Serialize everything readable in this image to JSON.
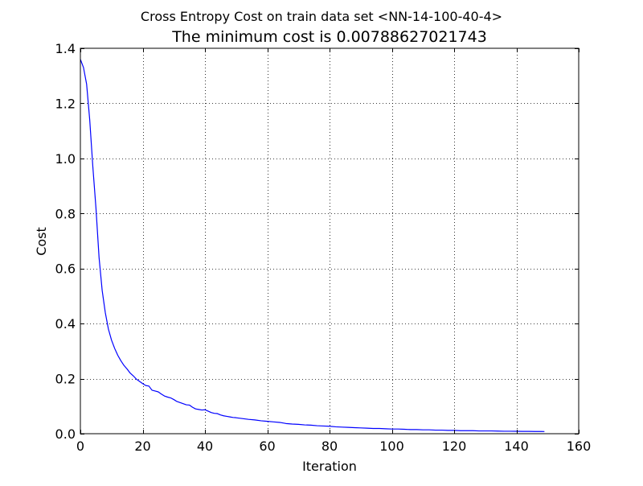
{
  "chart_data": {
    "type": "line",
    "suptitle": "Cross Entropy Cost on train data set <NN-14-100-40-4>",
    "title": "The minimum cost is 0.00788627021743",
    "xlabel": "Iteration",
    "ylabel": "Cost",
    "xlim": [
      0,
      160
    ],
    "ylim": [
      0,
      1.4
    ],
    "xticks": [
      0,
      20,
      40,
      60,
      80,
      100,
      120,
      140,
      160
    ],
    "yticks": [
      0.0,
      0.2,
      0.4,
      0.6,
      0.8,
      1.0,
      1.2,
      1.4
    ],
    "xtick_labels": [
      "0",
      "20",
      "40",
      "60",
      "80",
      "100",
      "120",
      "140",
      "160"
    ],
    "ytick_labels": [
      "0.0",
      "0.2",
      "0.4",
      "0.6",
      "0.8",
      "1.0",
      "1.2",
      "1.4"
    ],
    "grid": true,
    "series": [
      {
        "name": "cost",
        "color": "#0000ff",
        "x": [
          0,
          1,
          2,
          3,
          4,
          5,
          6,
          7,
          8,
          9,
          10,
          11,
          12,
          13,
          14,
          15,
          16,
          17,
          18,
          19,
          20,
          21,
          22,
          23,
          24,
          25,
          26,
          27,
          28,
          29,
          30,
          31,
          32,
          33,
          34,
          35,
          36,
          37,
          38,
          39,
          40,
          41,
          42,
          43,
          44,
          45,
          46,
          47,
          48,
          49,
          50,
          52,
          54,
          56,
          58,
          60,
          62,
          64,
          66,
          68,
          70,
          72,
          74,
          76,
          78,
          80,
          82,
          84,
          86,
          88,
          90,
          92,
          94,
          96,
          98,
          100,
          102,
          104,
          106,
          108,
          110,
          112,
          114,
          116,
          118,
          120,
          122,
          124,
          126,
          128,
          130,
          132,
          134,
          136,
          138,
          140,
          142,
          144,
          146,
          148,
          149
        ],
        "y": [
          1.36,
          1.33,
          1.27,
          1.14,
          0.97,
          0.82,
          0.64,
          0.52,
          0.44,
          0.38,
          0.34,
          0.31,
          0.285,
          0.265,
          0.248,
          0.235,
          0.22,
          0.21,
          0.198,
          0.19,
          0.182,
          0.175,
          0.173,
          0.158,
          0.155,
          0.152,
          0.144,
          0.137,
          0.133,
          0.13,
          0.124,
          0.117,
          0.113,
          0.109,
          0.105,
          0.104,
          0.096,
          0.09,
          0.088,
          0.086,
          0.087,
          0.082,
          0.077,
          0.074,
          0.073,
          0.068,
          0.065,
          0.063,
          0.061,
          0.059,
          0.058,
          0.055,
          0.052,
          0.05,
          0.047,
          0.045,
          0.043,
          0.041,
          0.037,
          0.035,
          0.034,
          0.032,
          0.031,
          0.029,
          0.028,
          0.027,
          0.025,
          0.024,
          0.023,
          0.022,
          0.021,
          0.02,
          0.019,
          0.019,
          0.018,
          0.017,
          0.017,
          0.016,
          0.015,
          0.015,
          0.014,
          0.014,
          0.013,
          0.013,
          0.012,
          0.012,
          0.011,
          0.011,
          0.011,
          0.01,
          0.01,
          0.01,
          0.0095,
          0.009,
          0.009,
          0.0088,
          0.0085,
          0.0083,
          0.0081,
          0.008,
          0.0079
        ]
      }
    ]
  }
}
